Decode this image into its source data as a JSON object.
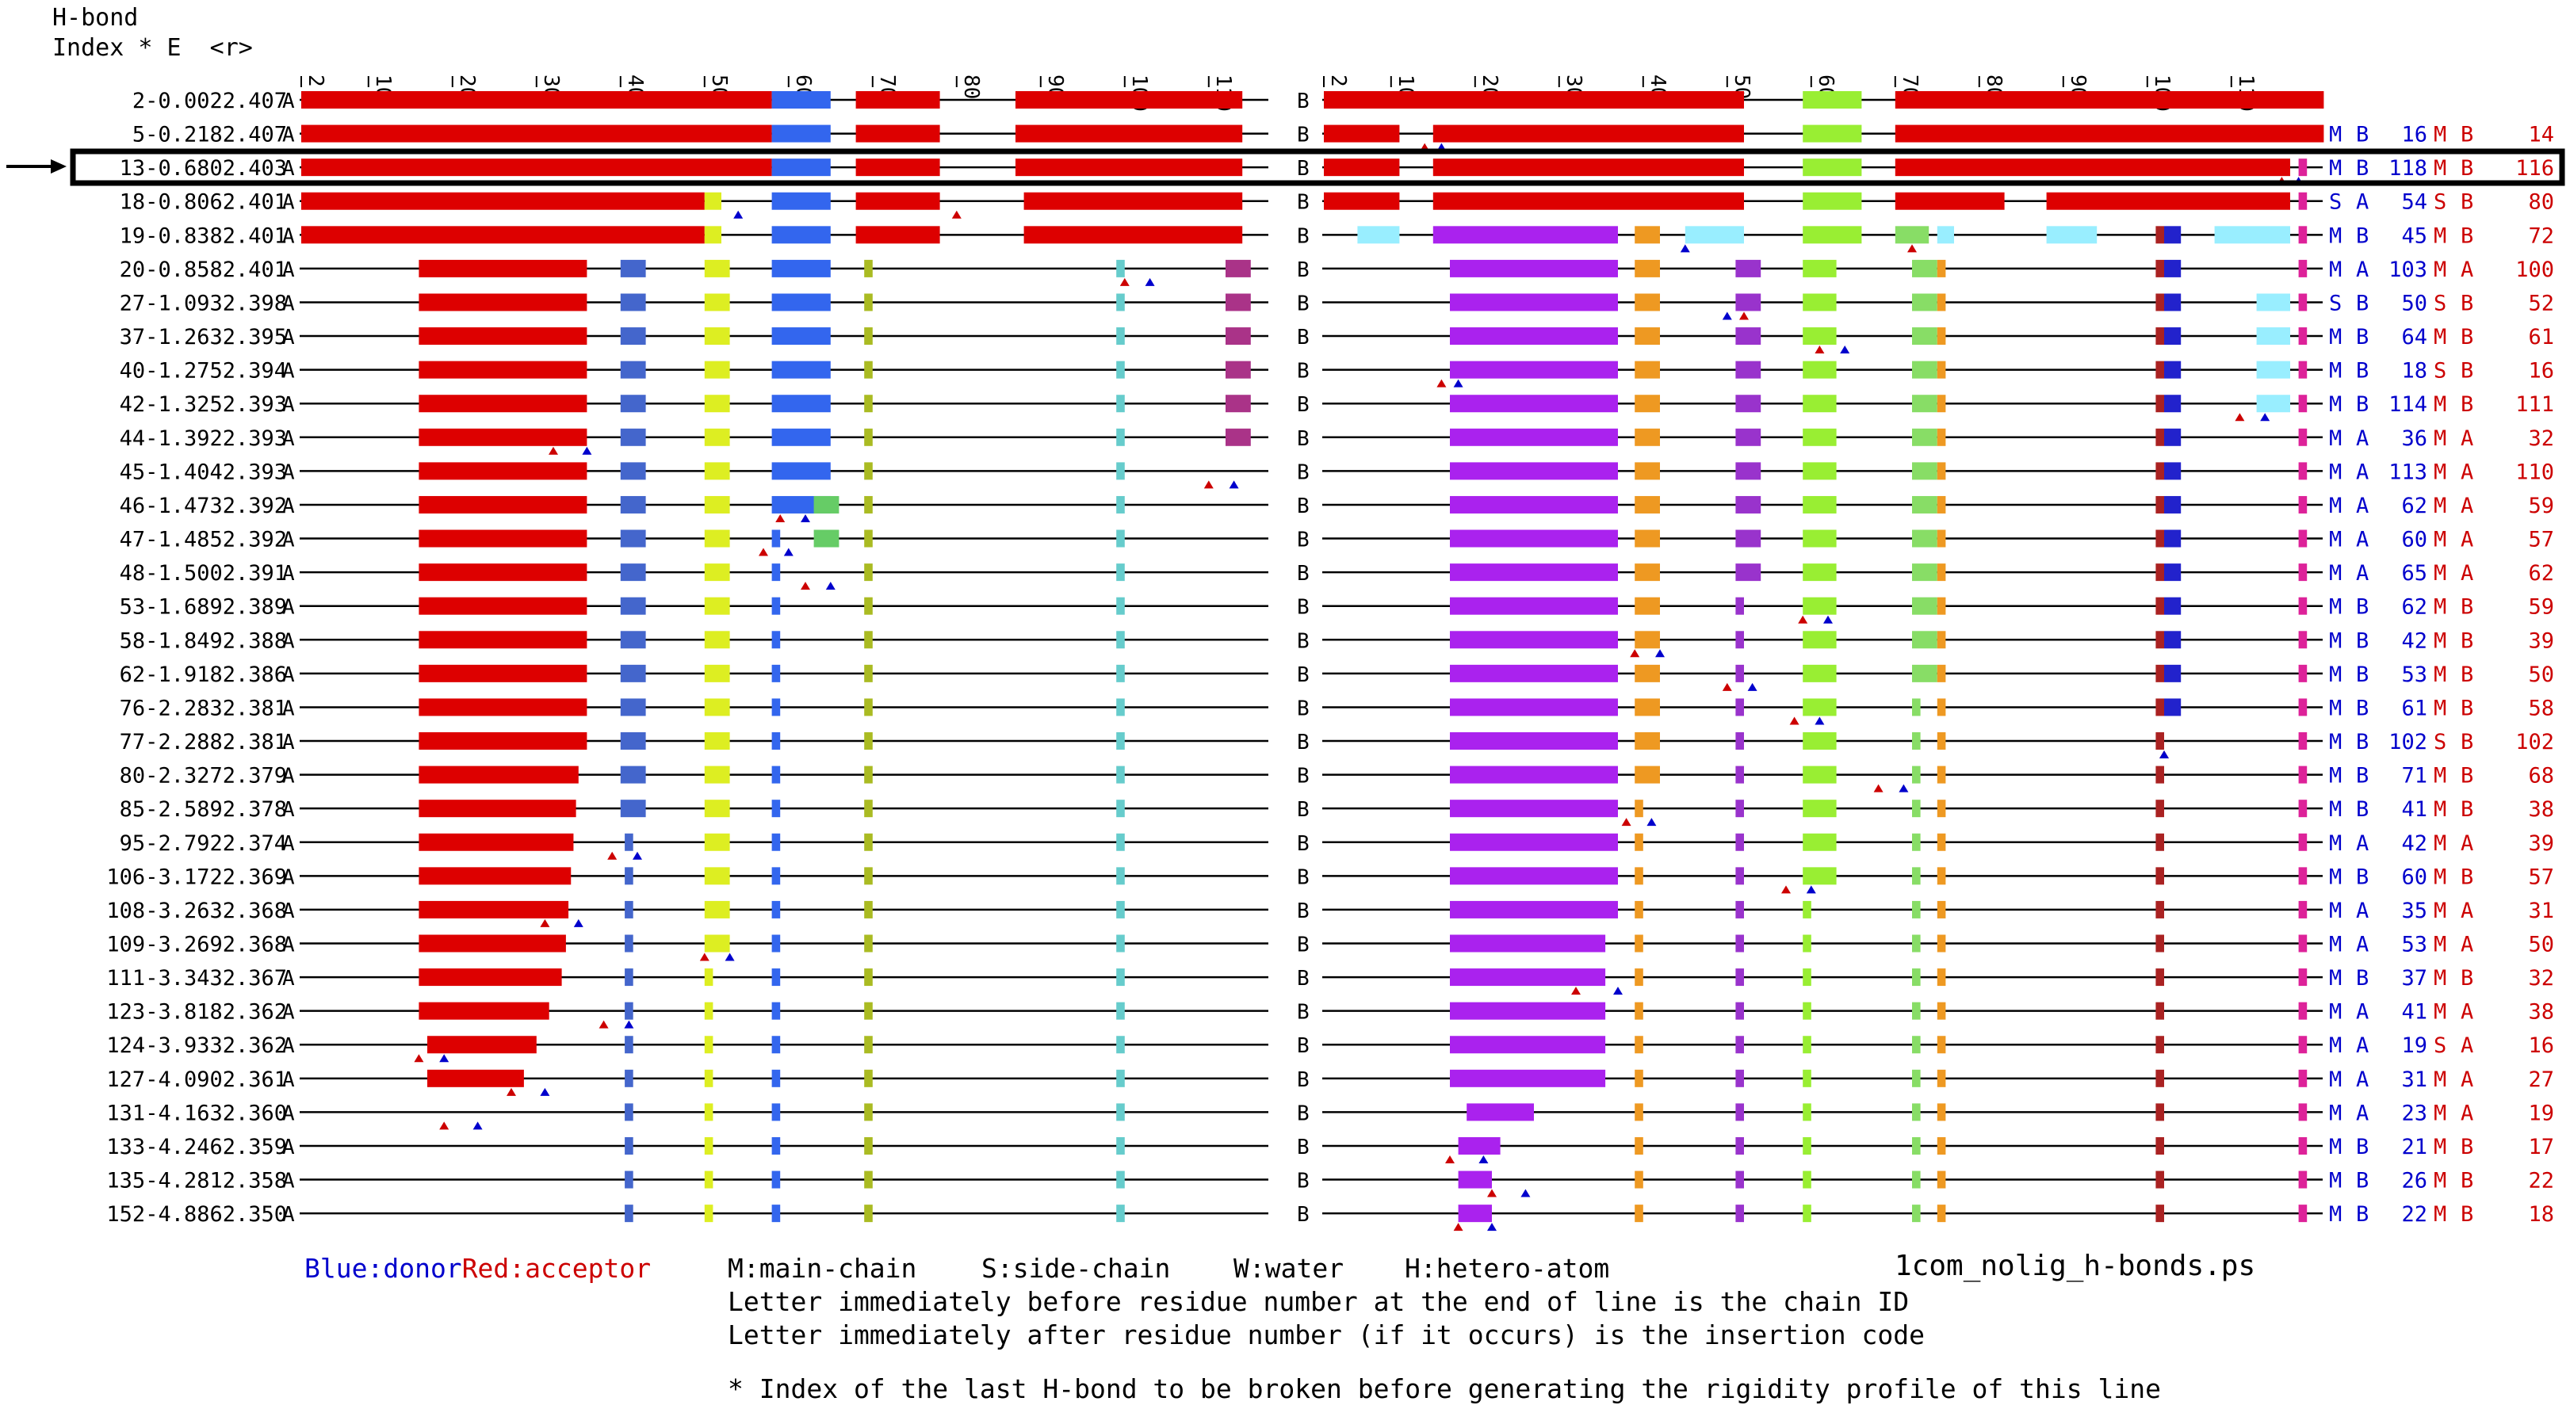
{
  "header": {
    "line1": "H-bond",
    "line2": "Index * E  <r>"
  },
  "axis": {
    "ticks": [
      2,
      10,
      20,
      30,
      40,
      50,
      60,
      70,
      80,
      90,
      100,
      110
    ],
    "tick_labels": [
      "2",
      "10",
      "20",
      "30",
      "40",
      "50",
      "60",
      "70",
      "80",
      "90",
      "100",
      "110"
    ],
    "chain_letters": [
      "A",
      "B"
    ],
    "residue_range": [
      2,
      119
    ]
  },
  "colors": {
    "rigid": "#dd0000",
    "blue": "#3366ee",
    "yellow": "#ddee22",
    "lime": "#99ee33",
    "olive": "#aabb22",
    "cyan": "#66cccc",
    "lightcyan": "#99eeff",
    "magenta": "#aa3388",
    "pink": "#dd2299",
    "purple": "#aa22ee",
    "orange": "#ee9922",
    "violet": "#9933cc",
    "darkred": "#aa2222",
    "navy": "#2222cc",
    "green": "#66cc66",
    "steel": "#4466cc",
    "donor": "#0000cc",
    "acceptor": "#cc0000"
  },
  "rows": [
    {
      "text": "2-0.0022.407",
      "d": [],
      "a": [],
      "b": [],
      "dr": null,
      "ar": null
    },
    {
      "text": "5-0.2182.407",
      "d": [
        "M",
        "B",
        "16"
      ],
      "a": [
        "M",
        "B",
        "14"
      ],
      "b": [],
      "dr": null,
      "ar": null
    },
    {
      "text": "13-0.6802.403",
      "d": [
        "M",
        "B",
        "118"
      ],
      "a": [
        "M",
        "B",
        "116"
      ],
      "b": [],
      "dr": null,
      "ar": null
    },
    {
      "text": "18-0.8062.401",
      "d": [
        "S",
        "A",
        "54"
      ],
      "a": [
        "S",
        "B",
        "80"
      ],
      "b": [],
      "dr": null,
      "ar": null
    },
    {
      "text": "19-0.8382.401",
      "d": [
        "M",
        "B",
        "45"
      ],
      "a": [
        "M",
        "B",
        "72"
      ],
      "b": [],
      "dr": null,
      "ar": null
    },
    {
      "text": "20-0.8582.401",
      "d": [
        "M",
        "A",
        "103"
      ],
      "a": [
        "M",
        "A",
        "100"
      ],
      "b": [],
      "dr": null,
      "ar": null
    },
    {
      "text": "27-1.0932.398",
      "d": [
        "S",
        "B",
        "50"
      ],
      "a": [
        "S",
        "B",
        "52"
      ],
      "b": [],
      "dr": null,
      "ar": null
    },
    {
      "text": "37-1.2632.395",
      "d": [
        "M",
        "B",
        "64"
      ],
      "a": [
        "M",
        "B",
        "61"
      ],
      "b": [],
      "dr": null,
      "ar": null
    },
    {
      "text": "40-1.2752.394",
      "d": [
        "M",
        "B",
        "18"
      ],
      "a": [
        "S",
        "B",
        "16"
      ],
      "b": [],
      "dr": null,
      "ar": null
    },
    {
      "text": "42-1.3252.393",
      "d": [
        "M",
        "B",
        "114"
      ],
      "a": [
        "M",
        "B",
        "111"
      ],
      "b": [],
      "dr": null,
      "ar": null
    },
    {
      "text": "44-1.3922.393",
      "d": [
        "M",
        "A",
        "36"
      ],
      "a": [
        "M",
        "A",
        "32"
      ],
      "b": [],
      "dr": null,
      "ar": null
    },
    {
      "text": "45-1.4042.393",
      "d": [
        "M",
        "A",
        "113"
      ],
      "a": [
        "M",
        "A",
        "110"
      ],
      "b": [],
      "dr": null,
      "ar": null
    },
    {
      "text": "46-1.4732.392",
      "d": [
        "M",
        "A",
        "62"
      ],
      "a": [
        "M",
        "A",
        "59"
      ],
      "b": [],
      "dr": null,
      "ar": null
    },
    {
      "text": "47-1.4852.392",
      "d": [
        "M",
        "A",
        "60"
      ],
      "a": [
        "M",
        "A",
        "57"
      ],
      "b": [],
      "dr": null,
      "ar": null
    },
    {
      "text": "48-1.5002.391",
      "d": [
        "M",
        "A",
        "65"
      ],
      "a": [
        "M",
        "A",
        "62"
      ],
      "b": [],
      "dr": null,
      "ar": null
    },
    {
      "text": "53-1.6892.389",
      "d": [
        "M",
        "B",
        "62"
      ],
      "a": [
        "M",
        "B",
        "59"
      ],
      "b": [],
      "dr": null,
      "ar": null
    },
    {
      "text": "58-1.8492.388",
      "d": [
        "M",
        "B",
        "42"
      ],
      "a": [
        "M",
        "B",
        "39"
      ],
      "b": [],
      "dr": null,
      "ar": null
    },
    {
      "text": "62-1.9182.386",
      "d": [
        "M",
        "B",
        "53"
      ],
      "a": [
        "M",
        "B",
        "50"
      ],
      "b": [],
      "dr": null,
      "ar": null
    },
    {
      "text": "76-2.2832.381",
      "d": [
        "M",
        "B",
        "61"
      ],
      "a": [
        "M",
        "B",
        "58"
      ],
      "b": [],
      "dr": null,
      "ar": null
    },
    {
      "text": "77-2.2882.381",
      "d": [
        "M",
        "B",
        "102"
      ],
      "a": [
        "S",
        "B",
        "102"
      ],
      "b": [],
      "dr": null,
      "ar": null
    },
    {
      "text": "80-2.3272.379",
      "d": [
        "M",
        "B",
        "71"
      ],
      "a": [
        "M",
        "B",
        "68"
      ],
      "b": [],
      "dr": null,
      "ar": null
    },
    {
      "text": "85-2.5892.378",
      "d": [
        "M",
        "B",
        "41"
      ],
      "a": [
        "M",
        "B",
        "38"
      ],
      "b": [],
      "dr": null,
      "ar": null
    },
    {
      "text": "95-2.7922.374",
      "d": [
        "M",
        "A",
        "42"
      ],
      "a": [
        "M",
        "A",
        "39"
      ],
      "b": [],
      "dr": null,
      "ar": null
    },
    {
      "text": "106-3.1722.369",
      "d": [
        "M",
        "B",
        "60"
      ],
      "a": [
        "M",
        "B",
        "57"
      ],
      "b": [],
      "dr": null,
      "ar": null
    },
    {
      "text": "108-3.2632.368",
      "d": [
        "M",
        "A",
        "35"
      ],
      "a": [
        "M",
        "A",
        "31"
      ],
      "b": [],
      "dr": null,
      "ar": null
    },
    {
      "text": "109-3.2692.368",
      "d": [
        "M",
        "A",
        "53"
      ],
      "a": [
        "M",
        "A",
        "50"
      ],
      "b": [],
      "dr": null,
      "ar": null
    },
    {
      "text": "111-3.3432.367",
      "d": [
        "M",
        "B",
        "37"
      ],
      "a": [
        "M",
        "B",
        "32"
      ],
      "b": [],
      "dr": null,
      "ar": null
    },
    {
      "text": "123-3.8182.362",
      "d": [
        "M",
        "A",
        "41"
      ],
      "a": [
        "M",
        "A",
        "38"
      ],
      "b": [],
      "dr": null,
      "ar": null
    },
    {
      "text": "124-3.9332.362",
      "d": [
        "M",
        "A",
        "19"
      ],
      "a": [
        "S",
        "A",
        "16"
      ],
      "b": [],
      "dr": null,
      "ar": null
    },
    {
      "text": "127-4.0902.361",
      "d": [
        "M",
        "A",
        "31"
      ],
      "a": [
        "M",
        "A",
        "27"
      ],
      "b": [],
      "dr": null,
      "ar": null
    },
    {
      "text": "131-4.1632.360",
      "d": [
        "M",
        "A",
        "23"
      ],
      "a": [
        "M",
        "A",
        "19"
      ],
      "b": [],
      "dr": null,
      "ar": null
    },
    {
      "text": "133-4.2462.359",
      "d": [
        "M",
        "B",
        "21"
      ],
      "a": [
        "M",
        "B",
        "17"
      ],
      "b": [],
      "dr": null,
      "ar": null
    },
    {
      "text": "135-4.2812.358",
      "d": [
        "M",
        "B",
        "26"
      ],
      "a": [
        "M",
        "B",
        "22"
      ],
      "b": [],
      "dr": null,
      "ar": null
    },
    {
      "text": "152-4.8862.350",
      "d": [
        "M",
        "B",
        "22"
      ],
      "a": [
        "M",
        "B",
        "18"
      ],
      "b": [],
      "dr": null,
      "ar": null
    }
  ],
  "legend": {
    "donor": "Blue:donor",
    "acceptor": "Red:acceptor",
    "main_chain": "M:main-chain",
    "side_chain": "S:side-chain",
    "water": "W:water",
    "hetero": "H:hetero-atom",
    "filename": "1com_nolig_h-bonds.ps",
    "note1": "Letter immediately before residue number at the end of line is the chain ID",
    "note2": "Letter immediately after residue number (if it occurs) is the insertion code",
    "note3": "* Index of the last H-bond to be broken before generating the rigidity profile of this line"
  }
}
